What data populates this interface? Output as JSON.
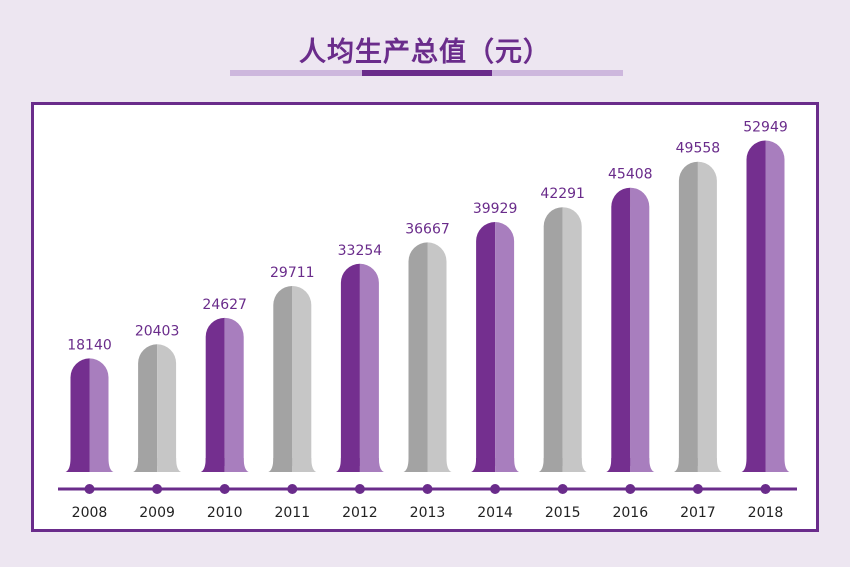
{
  "chart_data": {
    "type": "bar",
    "title": "人均生产总值（元）",
    "categories": [
      "2008",
      "2009",
      "2010",
      "2011",
      "2012",
      "2013",
      "2014",
      "2015",
      "2016",
      "2017",
      "2018"
    ],
    "values": [
      18140,
      20403,
      24627,
      29711,
      33254,
      36667,
      39929,
      42291,
      45408,
      49558,
      52949
    ],
    "bar_styles": [
      "purple",
      "gray",
      "purple",
      "gray",
      "purple",
      "gray",
      "purple",
      "gray",
      "purple",
      "gray",
      "purple"
    ],
    "xlabel": "",
    "ylabel": "",
    "grid": false,
    "colors": {
      "purple_dark": "#742f8f",
      "purple_light": "#a87ebe",
      "gray_dark": "#a3a3a3",
      "gray_light": "#c6c6c6",
      "accent": "#6a2c8b"
    }
  }
}
